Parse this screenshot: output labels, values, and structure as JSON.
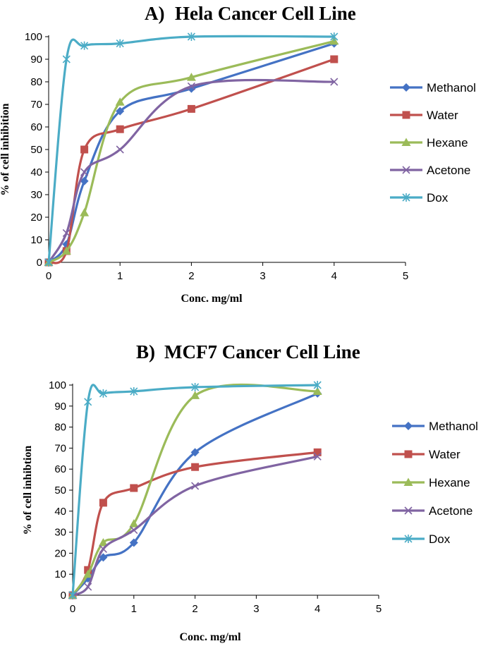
{
  "chart_data": [
    {
      "type": "line",
      "title_letter": "A)",
      "title": "Hela Cancer Cell Line",
      "xlabel": "Conc. mg/ml",
      "ylabel": "% of cell inhibition",
      "xlim": [
        0,
        5
      ],
      "ylim": [
        0,
        100
      ],
      "xticks": [
        0,
        1,
        2,
        3,
        4,
        5
      ],
      "yticks": [
        0,
        10,
        20,
        30,
        40,
        50,
        60,
        70,
        80,
        90,
        100
      ],
      "legend_position": "right",
      "series": [
        {
          "name": "Methanol",
          "color": "#4472C4",
          "marker": "diamond",
          "x": [
            0,
            0.25,
            0.5,
            1,
            2,
            4
          ],
          "y": [
            0,
            8,
            36,
            67,
            77,
            97
          ]
        },
        {
          "name": "Water",
          "color": "#C0504D",
          "marker": "square",
          "x": [
            0,
            0.25,
            0.5,
            1,
            2,
            4
          ],
          "y": [
            0,
            5,
            50,
            59,
            68,
            90
          ]
        },
        {
          "name": "Hexane",
          "color": "#9BBB59",
          "marker": "triangle",
          "x": [
            0,
            0.25,
            0.5,
            1,
            2,
            4
          ],
          "y": [
            0,
            5,
            22,
            71,
            82,
            98
          ]
        },
        {
          "name": "Acetone",
          "color": "#8064A2",
          "marker": "x",
          "x": [
            0,
            0.25,
            0.5,
            1,
            2,
            4
          ],
          "y": [
            0,
            13,
            40,
            50,
            78,
            80
          ]
        },
        {
          "name": "Dox",
          "color": "#4BACC6",
          "marker": "star",
          "x": [
            0,
            0.25,
            0.5,
            1,
            2,
            4
          ],
          "y": [
            0,
            90,
            96,
            97,
            100,
            100
          ]
        }
      ]
    },
    {
      "type": "line",
      "title_letter": "B)",
      "title": "MCF7 Cancer Cell Line",
      "xlabel": "Conc. mg/ml",
      "ylabel": "% of cell inhibtion",
      "xlim": [
        0,
        5
      ],
      "ylim": [
        0,
        100
      ],
      "xticks": [
        0,
        1,
        2,
        3,
        4,
        5
      ],
      "yticks": [
        0,
        10,
        20,
        30,
        40,
        50,
        60,
        70,
        80,
        90,
        100
      ],
      "legend_position": "right",
      "series": [
        {
          "name": "Methanol",
          "color": "#4472C4",
          "marker": "diamond",
          "x": [
            0,
            0.25,
            0.5,
            1,
            2,
            4
          ],
          "y": [
            0,
            8,
            18,
            25,
            68,
            96
          ]
        },
        {
          "name": "Water",
          "color": "#C0504D",
          "marker": "square",
          "x": [
            0,
            0.25,
            0.5,
            1,
            2,
            4
          ],
          "y": [
            0,
            12,
            44,
            51,
            61,
            68
          ]
        },
        {
          "name": "Hexane",
          "color": "#9BBB59",
          "marker": "triangle",
          "x": [
            0,
            0.25,
            0.5,
            1,
            2,
            4
          ],
          "y": [
            0,
            10,
            25,
            34,
            95,
            97
          ]
        },
        {
          "name": "Acetone",
          "color": "#8064A2",
          "marker": "x",
          "x": [
            0,
            0.25,
            0.5,
            1,
            2,
            4
          ],
          "y": [
            0,
            4,
            22,
            31,
            52,
            66
          ]
        },
        {
          "name": "Dox",
          "color": "#4BACC6",
          "marker": "star",
          "x": [
            0,
            0.25,
            0.5,
            1,
            2,
            4
          ],
          "y": [
            0,
            92,
            96,
            97,
            99,
            100
          ]
        }
      ]
    }
  ]
}
